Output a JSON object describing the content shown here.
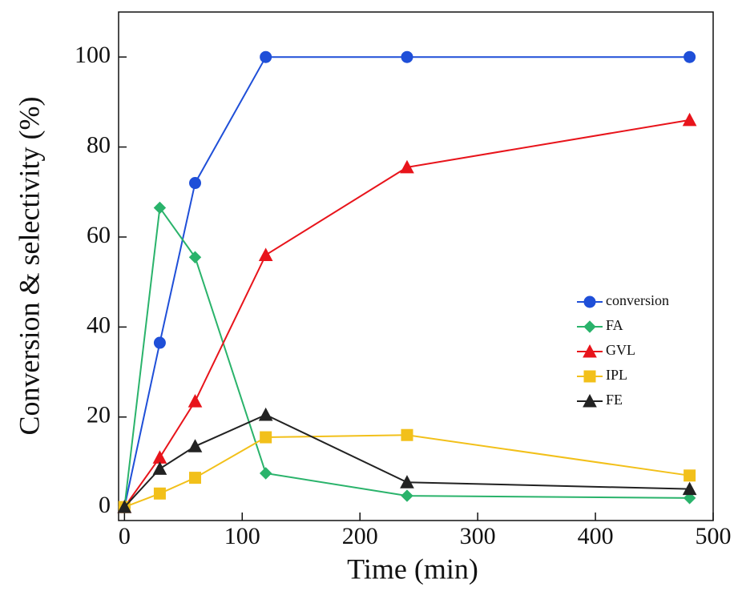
{
  "chart_data": {
    "type": "line",
    "xlabel": "Time (min)",
    "ylabel": "Conversion & selectivity (%)",
    "x": [
      0,
      30,
      60,
      120,
      240,
      480
    ],
    "series": [
      {
        "name": "conversion",
        "color": "#1f4fd8",
        "marker": "circle",
        "values": [
          0,
          36.5,
          72,
          100,
          100,
          100
        ]
      },
      {
        "name": "FA",
        "color": "#2ab36b",
        "marker": "diamond",
        "values": [
          0,
          66.5,
          55.5,
          7.5,
          2.5,
          2
        ]
      },
      {
        "name": "GVL",
        "color": "#e8141b",
        "marker": "triangle",
        "values": [
          0,
          11,
          23.5,
          56,
          75.5,
          86
        ]
      },
      {
        "name": "IPL",
        "color": "#f2c01a",
        "marker": "square",
        "values": [
          0,
          3,
          6.5,
          15.5,
          16,
          7
        ]
      },
      {
        "name": "FE",
        "color": "#222222",
        "marker": "triangle",
        "values": [
          0,
          8.5,
          13.5,
          20.5,
          5.5,
          4
        ]
      }
    ],
    "xlim": [
      -5,
      500
    ],
    "ylim": [
      -3,
      110
    ],
    "xticks": [
      0,
      100,
      200,
      300,
      400,
      500
    ],
    "yticks": [
      0,
      20,
      40,
      60,
      80,
      100
    ],
    "legend": "right"
  }
}
